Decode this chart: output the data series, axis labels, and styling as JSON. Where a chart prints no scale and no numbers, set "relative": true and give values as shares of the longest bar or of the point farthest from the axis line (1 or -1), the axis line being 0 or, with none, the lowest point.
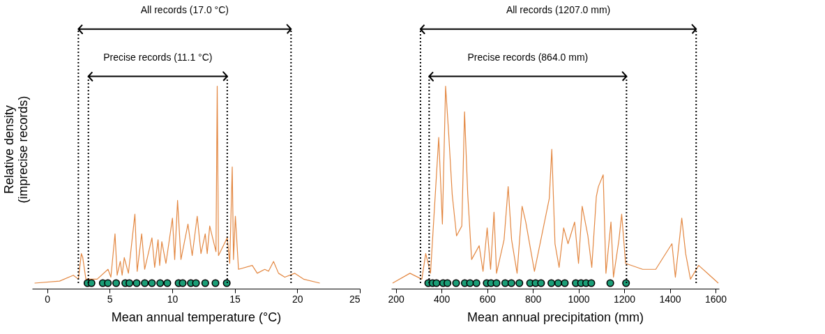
{
  "chart_data": [
    {
      "type": "line",
      "relative": true,
      "xlabel": "Mean annual temperature (°C)",
      "ylabel": "Relative density\n(imprecise records)",
      "xlim": [
        -1.2,
        25
      ],
      "xticks": [
        0,
        5,
        10,
        15,
        20,
        25
      ],
      "annotations": [
        "All records (17.0 °C)",
        "Precise records (11.1 °C)"
      ],
      "ref_lines": [
        {
          "axis": "x",
          "value": 2.5,
          "line_style": "dotted"
        },
        {
          "axis": "x",
          "value": 19.5,
          "line_style": "dotted"
        },
        {
          "axis": "x",
          "value": 3.3,
          "line_style": "dotted"
        },
        {
          "axis": "x",
          "value": 14.4,
          "line_style": "dotted"
        }
      ],
      "series": [
        {
          "color": "#d95f02",
          "x": [
            -1.0,
            1.0,
            2.1,
            2.5,
            2.74,
            2.85,
            3.1,
            4.0,
            4.87,
            5.1,
            5.43,
            5.6,
            5.85,
            6.0,
            6.17,
            6.5,
            7.02,
            7.2,
            7.56,
            7.8,
            8.38,
            8.6,
            8.87,
            9.0,
            9.17,
            9.5,
            10.02,
            10.2,
            10.43,
            10.7,
            11.26,
            11.6,
            12.0,
            12.3,
            12.64,
            12.8,
            13.0,
            13.5,
            13.6,
            13.7,
            14.4,
            14.6,
            14.8,
            14.9,
            15.05,
            15.3,
            16.4,
            16.8,
            17.4,
            17.7,
            18.1,
            18.5,
            19.0,
            19.8,
            20.5,
            21.8
          ],
          "values": [
            0,
            0.01,
            0.04,
            0.02,
            0.15,
            0.13,
            0.02,
            0.02,
            0.07,
            0.03,
            0.25,
            0.04,
            0.11,
            0.04,
            0.13,
            0.05,
            0.35,
            0.06,
            0.25,
            0.07,
            0.23,
            0.08,
            0.22,
            0.09,
            0.21,
            0.1,
            0.33,
            0.12,
            0.42,
            0.12,
            0.3,
            0.14,
            0.34,
            0.15,
            0.25,
            0.15,
            0.29,
            0.16,
            1.0,
            0.14,
            0.23,
            0.1,
            0.59,
            0.12,
            0.34,
            0.07,
            0.09,
            0.05,
            0.07,
            0.06,
            0.11,
            0.05,
            0.03,
            0.05,
            0.02,
            0
          ]
        },
        {
          "type": "scatter",
          "color": "#1b9e77",
          "marker": "circle",
          "x": [
            3.23,
            3.55,
            4.45,
            4.86,
            5.52,
            6.25,
            6.58,
            7.16,
            7.81,
            8.38,
            9.04,
            9.61,
            10.51,
            10.84,
            11.49,
            11.9,
            12.64,
            13.46,
            14.36
          ],
          "values": [
            0,
            0,
            0,
            0,
            0,
            0,
            0,
            0,
            0,
            0,
            0,
            0,
            0,
            0,
            0,
            0,
            0,
            0,
            0
          ]
        }
      ]
    },
    {
      "type": "line",
      "relative": true,
      "xlabel": "Mean annual precipitation (mm)",
      "xlim": [
        180,
        1615
      ],
      "xticks": [
        200,
        400,
        600,
        800,
        1000,
        1200,
        1400,
        1600
      ],
      "annotations": [
        "All records (1207.0 mm)",
        "Precise records (864.0 mm)"
      ],
      "ref_lines": [
        {
          "axis": "x",
          "value": 308,
          "line_style": "dotted"
        },
        {
          "axis": "x",
          "value": 1515,
          "line_style": "dotted"
        },
        {
          "axis": "x",
          "value": 346,
          "line_style": "dotted"
        },
        {
          "axis": "x",
          "value": 1210,
          "line_style": "dotted"
        }
      ],
      "series": [
        {
          "color": "#d95f02",
          "x": [
            186,
            262,
            314,
            331,
            352,
            388,
            404,
            418,
            431,
            447,
            466,
            489,
            501,
            515,
            532,
            565,
            582,
            600,
            615,
            630,
            641,
            674,
            692,
            707,
            731,
            753,
            769,
            807,
            872,
            883,
            897,
            915,
            935,
            954,
            983,
            1000,
            1016,
            1041,
            1058,
            1078,
            1087,
            1108,
            1120,
            1142,
            1153,
            1177,
            1189,
            1206,
            1281,
            1338,
            1409,
            1424,
            1452,
            1469,
            1490,
            1526,
            1612
          ],
          "values": [
            0,
            0.05,
            0.02,
            0.15,
            0.05,
            0.74,
            0.3,
            1.0,
            0.77,
            0.45,
            0.24,
            0.29,
            0.87,
            0.45,
            0.12,
            0.19,
            0.06,
            0.28,
            0.07,
            0.36,
            0.05,
            0.22,
            0.49,
            0.22,
            0.05,
            0.39,
            0.31,
            0.06,
            0.43,
            0.68,
            0.2,
            0.08,
            0.28,
            0.2,
            0.31,
            0.1,
            0.39,
            0.24,
            0.08,
            0.44,
            0.49,
            0.55,
            0.05,
            0.31,
            0.03,
            0.22,
            0.35,
            0.1,
            0.07,
            0.07,
            0.2,
            0.03,
            0.33,
            0.15,
            0.02,
            0.09,
            0
          ]
        },
        {
          "type": "scatter",
          "color": "#1b9e77",
          "marker": "circle",
          "x": [
            342,
            361,
            378,
            407,
            426,
            464,
            502,
            525,
            553,
            598,
            617,
            641,
            679,
            706,
            741,
            788,
            812,
            836,
            881,
            911,
            940,
            988,
            1011,
            1033,
            1056,
            1139,
            1208
          ],
          "values": [
            0,
            0,
            0,
            0,
            0,
            0,
            0,
            0,
            0,
            0,
            0,
            0,
            0,
            0,
            0,
            0,
            0,
            0,
            0,
            0,
            0,
            0,
            0,
            0,
            0,
            0,
            0
          ]
        }
      ]
    }
  ]
}
